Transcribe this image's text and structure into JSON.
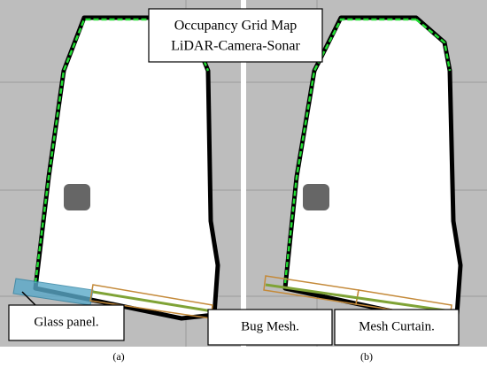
{
  "title": {
    "line1": "Occupancy Grid Map",
    "line2": "LiDAR-Camera-Sonar"
  },
  "panels": [
    {
      "caption": "(a)",
      "labels": [
        "Glass panel."
      ]
    },
    {
      "caption": "(b)",
      "labels": [
        "Bug Mesh.",
        "Mesh Curtain."
      ]
    }
  ]
}
